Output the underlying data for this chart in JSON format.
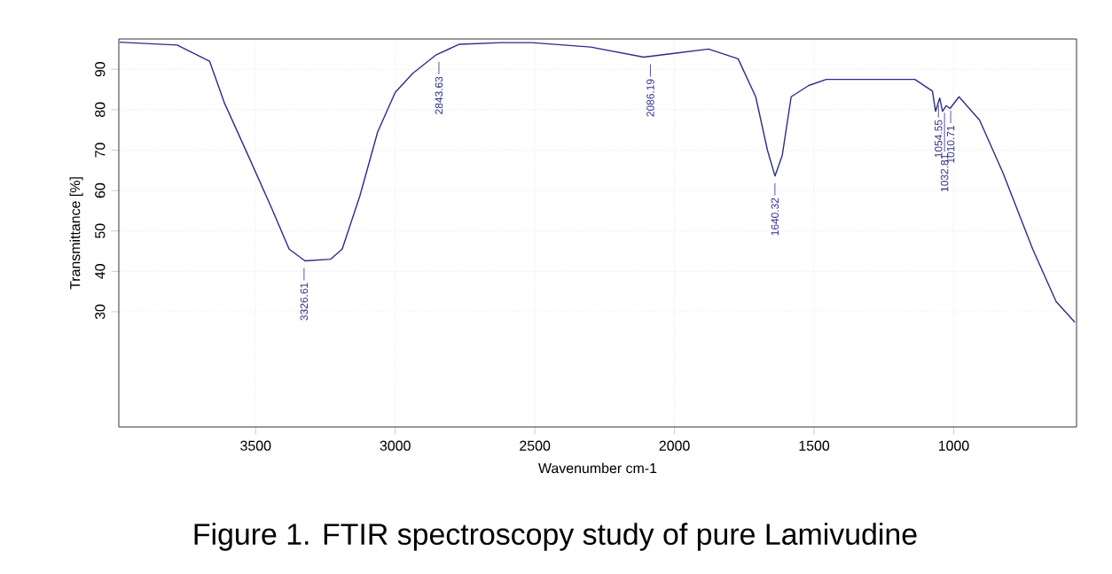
{
  "chart_data": {
    "type": "line",
    "title": "Figure 1. FTIR spectroscopy study of pure Lamivudine",
    "xlabel": "Wavenumber cm-1",
    "ylabel": "Transmittance [%]",
    "xlim": [
      3990,
      560
    ],
    "ylim": [
      1.5,
      97.5
    ],
    "xticks": [
      3500,
      3000,
      2500,
      2000,
      1500,
      1000
    ],
    "yticks": [
      30,
      40,
      50,
      60,
      70,
      80,
      90
    ],
    "grid": true,
    "series": [
      {
        "color": "#2b2b8c",
        "x": [
          3987,
          3781,
          3665,
          3612,
          3527,
          3443,
          3380,
          3323,
          3232,
          3190,
          3127,
          3063,
          3000,
          2937,
          2853,
          2770,
          2620,
          2511,
          2300,
          2110,
          1878,
          1772,
          1709,
          1667,
          1640,
          1614,
          1582,
          1519,
          1456,
          1139,
          1076,
          1065,
          1050,
          1040,
          1027,
          1013,
          981,
          907,
          823,
          717,
          633,
          566
        ],
        "values": [
          96.7,
          96,
          92,
          81.7,
          68.7,
          55.7,
          45.5,
          42.6,
          43,
          45.5,
          58.6,
          74.5,
          84.3,
          89,
          93.6,
          96.2,
          96.6,
          96.6,
          95.5,
          93,
          95,
          92.6,
          83.2,
          70,
          63.6,
          68.7,
          83.2,
          86,
          87.5,
          87.5,
          84.6,
          79.6,
          82.9,
          79.6,
          81,
          80.3,
          83.2,
          77.4,
          64.3,
          45.5,
          32.5,
          27.4
        ]
      }
    ],
    "annotations": [
      {
        "text": "3326.61",
        "x": 3326.61,
        "y": 42.6
      },
      {
        "text": "2843.63",
        "x": 2843.63,
        "y": 93.6
      },
      {
        "text": "2086.19",
        "x": 2086.19,
        "y": 93
      },
      {
        "text": "1640.32",
        "x": 1640.32,
        "y": 63.6
      },
      {
        "text": "1054.55",
        "x": 1054.55,
        "y": 82.9
      },
      {
        "text": "1032.81",
        "x": 1032.81,
        "y": 81
      },
      {
        "text": "1010.71",
        "x": 1010.71,
        "y": 81.5
      }
    ]
  }
}
